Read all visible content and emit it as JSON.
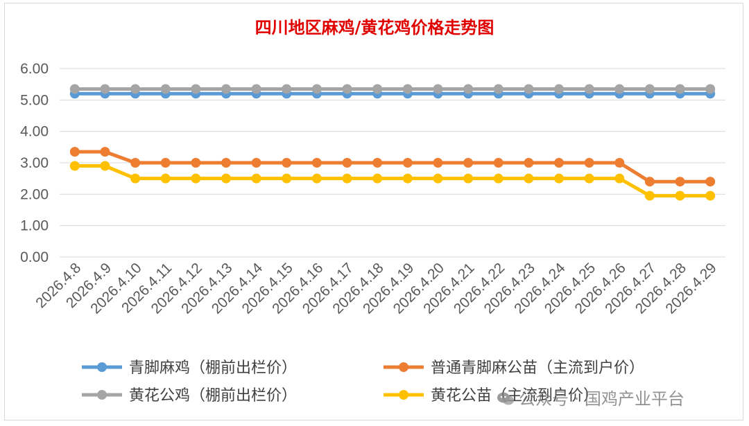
{
  "chart_data": {
    "type": "line",
    "title": "四川地区麻鸡/黄花鸡价格走势图",
    "categories": [
      "2026.4.8",
      "2026.4.9",
      "2026.4.10",
      "2026.4.11",
      "2026.4.12",
      "2026.4.13",
      "2026.4.14",
      "2026.4.15",
      "2026.4.16",
      "2026.4.17",
      "2026.4.18",
      "2026.4.19",
      "2026.4.20",
      "2026.4.21",
      "2026.4.22",
      "2026.4.23",
      "2026.4.24",
      "2026.4.25",
      "2026.4.26",
      "2026.4.27",
      "2026.4.28",
      "2026.4.29"
    ],
    "ylim": [
      0,
      6
    ],
    "yticks": [
      "0.00",
      "1.00",
      "2.00",
      "3.00",
      "4.00",
      "5.00",
      "6.00"
    ],
    "grid": true,
    "legend_position": "bottom",
    "series": [
      {
        "name": "青脚麻鸡（棚前出栏价）",
        "color": "#5b9bd5",
        "values": [
          5.2,
          5.2,
          5.2,
          5.2,
          5.2,
          5.2,
          5.2,
          5.2,
          5.2,
          5.2,
          5.2,
          5.2,
          5.2,
          5.2,
          5.2,
          5.2,
          5.2,
          5.2,
          5.2,
          5.2,
          5.2,
          5.2
        ]
      },
      {
        "name": "普通青脚麻公苗（主流到户价）",
        "color": "#ed7d31",
        "values": [
          3.35,
          3.35,
          3.0,
          3.0,
          3.0,
          3.0,
          3.0,
          3.0,
          3.0,
          3.0,
          3.0,
          3.0,
          3.0,
          3.0,
          3.0,
          3.0,
          3.0,
          3.0,
          3.0,
          2.4,
          2.4,
          2.4
        ]
      },
      {
        "name": "黄花公鸡（棚前出栏价）",
        "color": "#a5a5a5",
        "values": [
          5.35,
          5.35,
          5.35,
          5.35,
          5.35,
          5.35,
          5.35,
          5.35,
          5.35,
          5.35,
          5.35,
          5.35,
          5.35,
          5.35,
          5.35,
          5.35,
          5.35,
          5.35,
          5.35,
          5.35,
          5.35,
          5.35
        ]
      },
      {
        "name": "黄花公苗（主流到户价）",
        "color": "#ffc000",
        "values": [
          2.9,
          2.9,
          2.5,
          2.5,
          2.5,
          2.5,
          2.5,
          2.5,
          2.5,
          2.5,
          2.5,
          2.5,
          2.5,
          2.5,
          2.5,
          2.5,
          2.5,
          2.5,
          2.5,
          1.95,
          1.95,
          1.95
        ]
      }
    ]
  },
  "watermark": {
    "text": "公众号 · 国鸡产业平台",
    "icon": "wechat-icon"
  }
}
